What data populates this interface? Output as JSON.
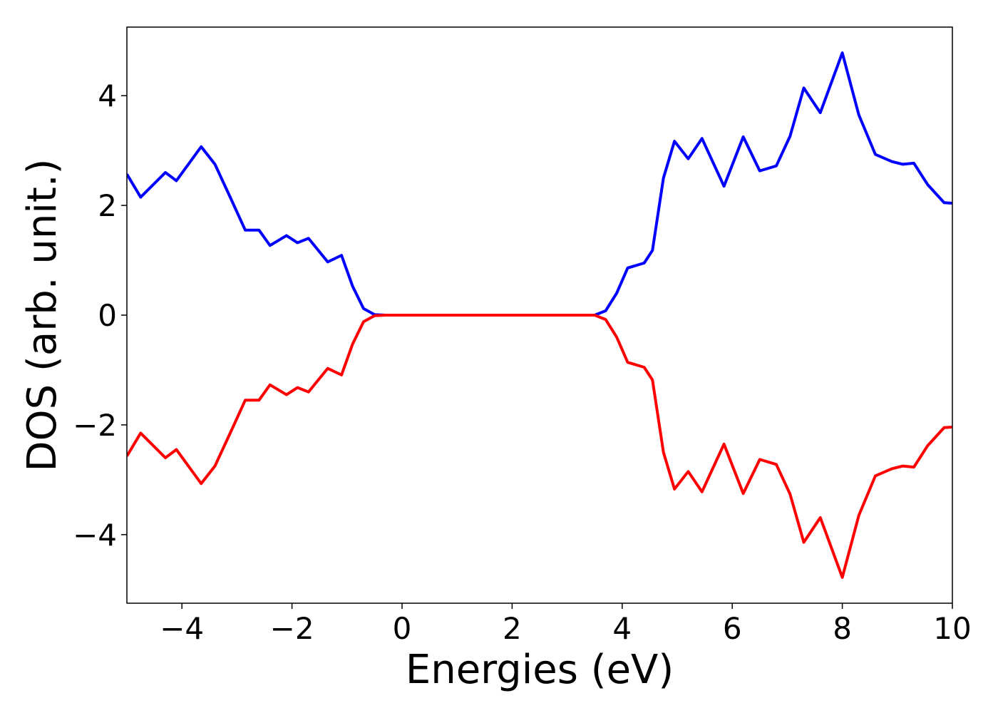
{
  "chart_data": {
    "type": "line",
    "xlabel": "Energies (eV)",
    "ylabel": "DOS (arb. unit.)",
    "x": [
      -5,
      -4.75,
      -4.3,
      -4.1,
      -3.65,
      -3.4,
      -3.1,
      -2.85,
      -2.6,
      -2.4,
      -2.1,
      -1.9,
      -1.7,
      -1.35,
      -1.1,
      -0.9,
      -0.7,
      -0.5,
      -0.3,
      3.5,
      3.7,
      3.9,
      4.1,
      4.4,
      4.55,
      4.75,
      4.95,
      5.2,
      5.45,
      5.85,
      6.2,
      6.5,
      6.8,
      7.05,
      7.3,
      7.6,
      8.0,
      8.3,
      8.6,
      8.9,
      9.1,
      9.3,
      9.55,
      9.85,
      10
    ],
    "series": [
      {
        "color": "#0000ff",
        "values": [
          2.57,
          2.15,
          2.6,
          2.45,
          3.07,
          2.75,
          2.1,
          1.55,
          1.55,
          1.27,
          1.45,
          1.32,
          1.4,
          0.97,
          1.09,
          0.53,
          0.12,
          0.01,
          0,
          0,
          0.08,
          0.4,
          0.86,
          0.95,
          1.18,
          2.5,
          3.17,
          2.85,
          3.22,
          2.35,
          3.25,
          2.63,
          2.72,
          3.26,
          4.14,
          3.69,
          4.78,
          3.65,
          2.93,
          2.8,
          2.75,
          2.77,
          2.38,
          2.05,
          2.04
        ]
      },
      {
        "color": "#ff0000",
        "values": [
          -2.57,
          -2.15,
          -2.6,
          -2.45,
          -3.07,
          -2.75,
          -2.1,
          -1.55,
          -1.55,
          -1.27,
          -1.45,
          -1.32,
          -1.4,
          -0.97,
          -1.09,
          -0.53,
          -0.12,
          -0.01,
          0,
          0,
          -0.08,
          -0.4,
          -0.86,
          -0.95,
          -1.18,
          -2.5,
          -3.17,
          -2.85,
          -3.22,
          -2.35,
          -3.25,
          -2.63,
          -2.72,
          -3.26,
          -4.14,
          -3.69,
          -4.78,
          -3.65,
          -2.93,
          -2.8,
          -2.75,
          -2.77,
          -2.38,
          -2.05,
          -2.04
        ]
      }
    ],
    "xlim": [
      -5,
      10
    ],
    "xticks": [
      {
        "value": -4,
        "label": "−4"
      },
      {
        "value": -2,
        "label": "−2"
      },
      0,
      2,
      4,
      6,
      8,
      10
    ],
    "ylim": [
      -5.25,
      5.25
    ],
    "yticks": [
      {
        "value": -4,
        "label": "−4"
      },
      {
        "value": -2,
        "label": "−2"
      },
      0,
      2,
      4
    ],
    "grid": false
  }
}
